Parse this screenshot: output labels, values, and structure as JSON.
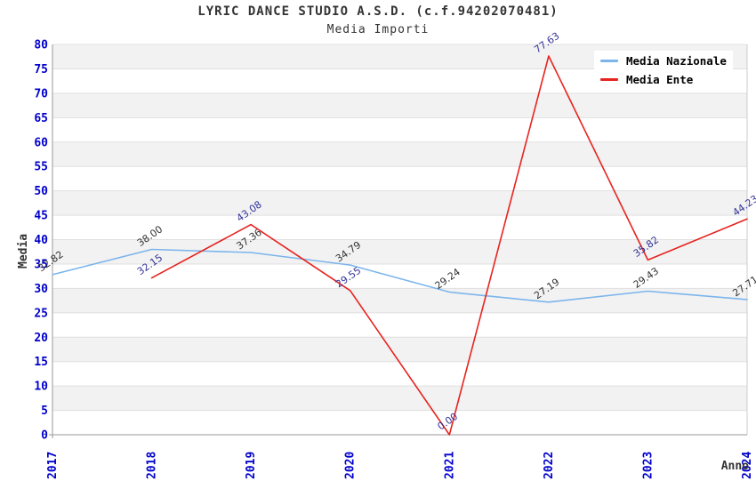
{
  "header": {
    "title": "LYRIC DANCE STUDIO A.S.D. (c.f.94202070481)",
    "subtitle": "Media Importi"
  },
  "chart_data": {
    "type": "line",
    "x": [
      2017,
      2018,
      2019,
      2020,
      2021,
      2022,
      2023,
      2024
    ],
    "xlabel": "Anno",
    "ylabel": "Media",
    "ylim": [
      0,
      80
    ],
    "ytick_step": 5,
    "grid": true,
    "legend_position": "top-right",
    "series": [
      {
        "name": "Media Nazionale",
        "color": "#7cb5ec",
        "label_color": "#333333",
        "values": [
          32.82,
          38.0,
          37.36,
          34.79,
          29.24,
          27.19,
          29.43,
          27.71
        ]
      },
      {
        "name": "Media Ente",
        "color": "#e62420",
        "label_color": "#333399",
        "values": [
          null,
          32.15,
          43.08,
          29.55,
          0.0,
          77.63,
          35.82,
          44.23
        ]
      }
    ],
    "axis_tick_color": "#0000cc",
    "band_color": "#f2f2f2",
    "gridline_color": "#e0e0e0",
    "axis_line_color": "#9a9a9a",
    "text_color": "#333333"
  }
}
